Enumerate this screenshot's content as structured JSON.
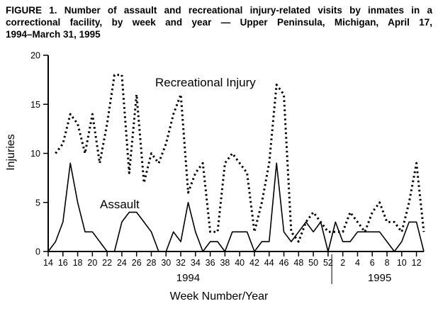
{
  "figure": {
    "title_lines": [
      "FIGURE 1. Number of assault and recreational injury-related visits by inmates in a",
      "correctional facility, by week and year — Upper Peninsula, Michigan, April 17,",
      "1994–March 31, 1995"
    ]
  },
  "chart_data": {
    "type": "line",
    "title": "FIGURE 1. Number of assault and recreational injury-related visits by inmates in a correctional facility, by week and year — Upper Peninsula, Michigan, April 17, 1994–March 31, 1995",
    "xlabel": "Week Number/Year",
    "ylabel": "Injuries",
    "ylim": [
      0,
      20
    ],
    "yticks": [
      0,
      5,
      10,
      15,
      20
    ],
    "grid": false,
    "legend_position": "in-plot annotations",
    "year_labels": [
      "1994",
      "1995"
    ],
    "xticks_shown": [
      14,
      16,
      18,
      20,
      22,
      24,
      26,
      28,
      30,
      32,
      34,
      36,
      38,
      40,
      42,
      44,
      46,
      48,
      50,
      52,
      2,
      4,
      6,
      8,
      10,
      12
    ],
    "x_weeks": [
      14,
      15,
      16,
      17,
      18,
      19,
      20,
      21,
      22,
      23,
      24,
      25,
      26,
      27,
      28,
      29,
      30,
      31,
      32,
      33,
      34,
      35,
      36,
      37,
      38,
      39,
      40,
      41,
      42,
      43,
      44,
      45,
      46,
      47,
      48,
      49,
      50,
      51,
      52,
      1,
      2,
      3,
      4,
      5,
      6,
      7,
      8,
      9,
      10,
      11,
      12,
      13
    ],
    "series": [
      {
        "name": "Assault",
        "style": "solid",
        "values": [
          0,
          1,
          3,
          9,
          5,
          2,
          2,
          1,
          0,
          0,
          3,
          4,
          4,
          3,
          2,
          0,
          0,
          2,
          1,
          5,
          2,
          0,
          1,
          1,
          0,
          2,
          2,
          2,
          0,
          1,
          1,
          9,
          2,
          1,
          2,
          3,
          2,
          3,
          0,
          3,
          1,
          1,
          2,
          2,
          2,
          2,
          1,
          0,
          1,
          3,
          3,
          0
        ]
      },
      {
        "name": "Recreational Injury",
        "style": "dotted",
        "values": [
          null,
          10,
          11,
          14,
          13,
          10,
          14,
          9,
          13,
          18,
          18,
          8,
          16,
          7,
          10,
          9,
          11,
          14,
          16,
          6,
          8,
          9,
          2,
          2,
          9,
          10,
          9,
          8,
          2,
          5,
          9,
          17,
          16,
          2,
          1,
          3,
          4,
          3,
          2,
          2,
          2,
          4,
          3,
          2,
          4,
          5,
          3,
          3,
          2,
          5,
          9,
          2
        ]
      }
    ]
  }
}
